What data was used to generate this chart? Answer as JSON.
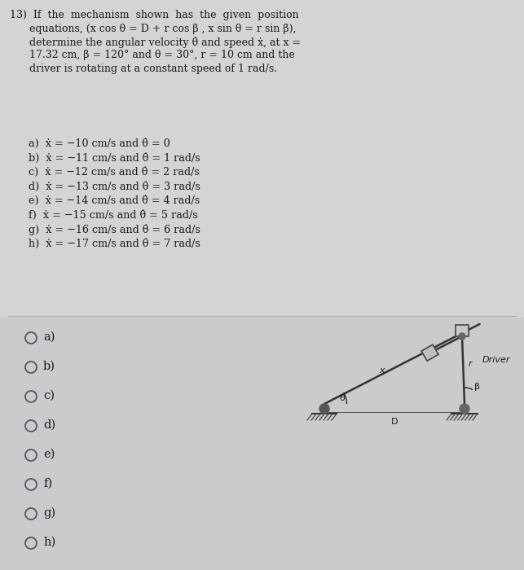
{
  "bg_color": "#d8d8d8",
  "upper_bg": "#d0d0d0",
  "lower_bg": "#cccccc",
  "text_color": "#1a1a1a",
  "radio_color": "#555566",
  "font_size_q": 9.0,
  "font_size_opt": 9.2,
  "font_size_radio": 10.5,
  "question_lines": [
    "13)  If  the  mechanism  shown  has  the  given  position",
    "      equations, (x cos θ = D + r cos β , x sin θ = r sin β),",
    "      determine the angular velocity θ̇ and speed ẋ, at x =",
    "      17.32 cm, β = 120° and θ = 30°, r = 10 cm and the",
    "      driver is rotating at a constant speed of 1 rad/s."
  ],
  "option_lines": [
    "a)  ẋ = −10 cm/s and θ̇ = 0",
    "b)  ẋ = −11 cm/s and θ̇ = 1 rad/s",
    "c)  ẋ = −12 cm/s and θ̇ = 2 rad/s",
    "d)  ẋ = −13 cm/s and θ̇ = 3 rad/s",
    "e)  ẋ = −14 cm/s and θ̇ = 4 rad/s",
    "f)  ẋ = −15 cm/s and θ̇ = 5 rad/s",
    "g)  ẋ = −16 cm/s and θ̇ = 6 rad/s",
    "h)  ẋ = −17 cm/s and θ̇ = 7 rad/s"
  ],
  "radio_labels": [
    "a)",
    "b)",
    "c)",
    "d)",
    "e)",
    "f)",
    "g)",
    "h)"
  ]
}
